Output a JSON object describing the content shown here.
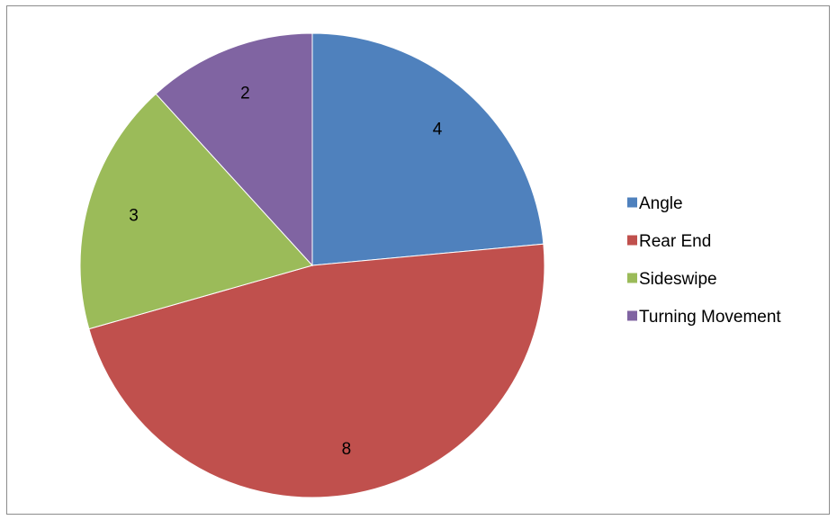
{
  "chart_data": {
    "type": "pie",
    "categories": [
      "Angle",
      "Rear End",
      "Sideswipe",
      "Turning Movement"
    ],
    "values": [
      4,
      8,
      3,
      2
    ],
    "colors": [
      "#4f81bd",
      "#c0504d",
      "#9bbb59",
      "#8064a2"
    ],
    "data_labels": [
      "4",
      "8",
      "3",
      "2"
    ],
    "legend_position": "right",
    "start_angle": "top",
    "direction": "clockwise"
  }
}
